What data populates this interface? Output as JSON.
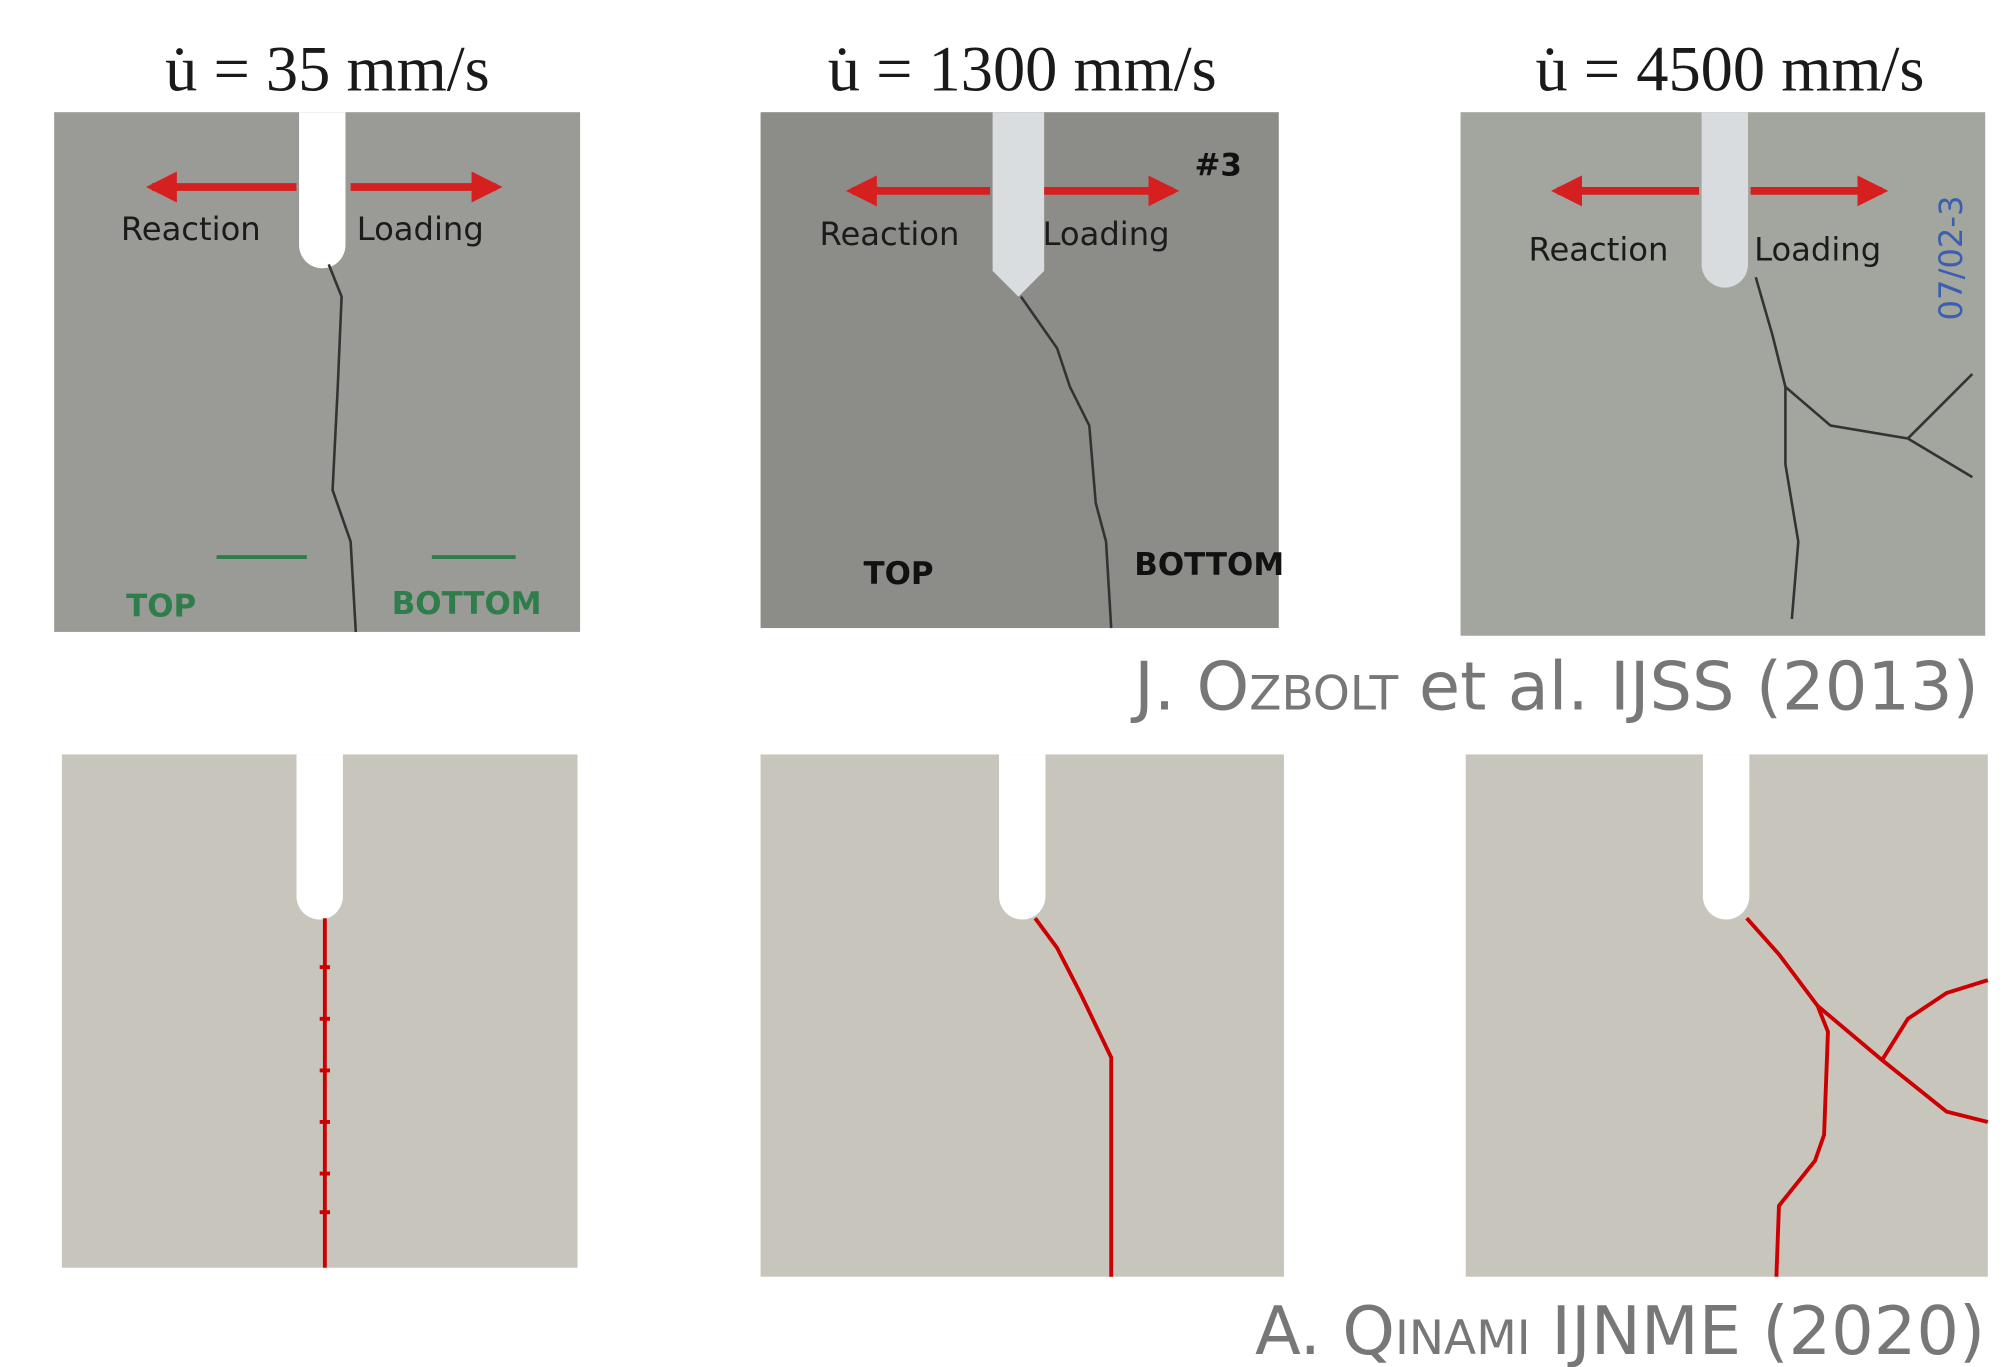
{
  "panels": [
    {
      "rate_label": "u̇ = 35 mm/s",
      "reaction": "Reaction",
      "loading": "Loading",
      "top": "TOP",
      "bottom": "BOTTOM"
    },
    {
      "rate_label": "u̇ = 1300 mm/s",
      "reaction": "Reaction",
      "loading": "Loading",
      "top": "TOP",
      "bottom": "BOTTOM",
      "mark": "#3"
    },
    {
      "rate_label": "u̇ = 4500 mm/s",
      "reaction": "Reaction",
      "loading": "Loading",
      "mark": "07/02-3"
    }
  ],
  "experiment_citation": {
    "author": "J. Ozbolt",
    "source": "et al. IJSS (2013)"
  },
  "simulation_citation": {
    "author": "A. Qinami",
    "source": "IJNME (2020)"
  }
}
